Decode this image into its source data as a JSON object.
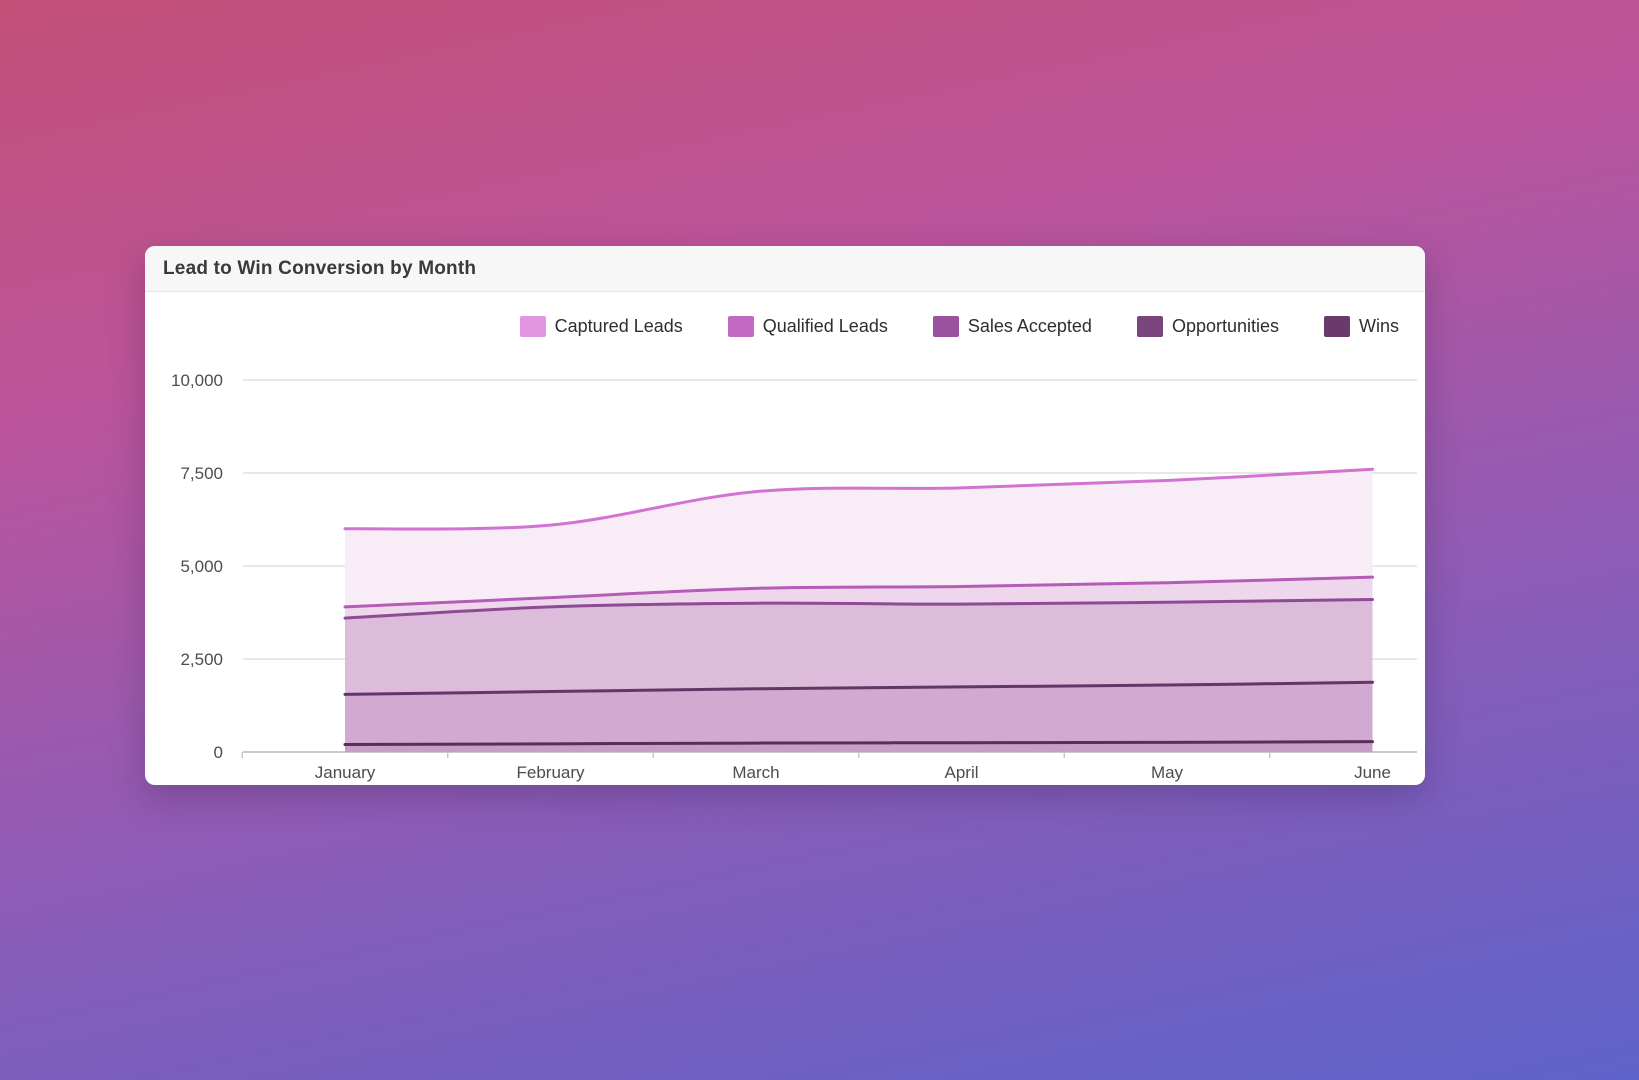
{
  "card": {
    "title": "Lead to Win Conversion by Month"
  },
  "page_colors": {
    "background_gradient_top": "#c25077",
    "background_gradient_mid1": "#bb549b",
    "background_gradient_mid2": "#8a5cb8",
    "background_gradient_bottom": "#5e63c9",
    "card_background": "#ffffff",
    "card_header_background": "#f7f7f7",
    "gridline": "#e8e8e8",
    "axis_line": "#c9c9c9",
    "axis_text": "#4d4d4d"
  },
  "chart_data": {
    "type": "area",
    "title": "Lead to Win Conversion by Month",
    "categories": [
      "January",
      "February",
      "March",
      "April",
      "May",
      "June"
    ],
    "series": [
      {
        "name": "Captured Leads",
        "values": [
          6000,
          6100,
          7000,
          7100,
          7300,
          7600
        ],
        "line_color": "#d272d2",
        "fill_color": "#f8ecf7",
        "swatch_color": "#e296e1"
      },
      {
        "name": "Qualified Leads",
        "values": [
          3900,
          4150,
          4400,
          4450,
          4550,
          4700
        ],
        "line_color": "#b55cb6",
        "fill_color": "#eed6ed",
        "swatch_color": "#c368c3"
      },
      {
        "name": "Sales Accepted",
        "values": [
          3600,
          3900,
          4000,
          3975,
          4025,
          4100
        ],
        "line_color": "#8d4b93",
        "fill_color": "#dcbbdb",
        "swatch_color": "#9a52a0"
      },
      {
        "name": "Opportunities",
        "values": [
          1550,
          1625,
          1700,
          1750,
          1800,
          1875
        ],
        "line_color": "#643667",
        "fill_color": "#d2a9d1",
        "swatch_color": "#7a457c"
      },
      {
        "name": "Wins",
        "values": [
          200,
          220,
          240,
          250,
          260,
          280
        ],
        "line_color": "#582f5a",
        "fill_color": "#c89dc8",
        "swatch_color": "#6a3a6d"
      }
    ],
    "ylim": [
      0,
      10000
    ],
    "y_tick_labels": [
      "10,000",
      "7,500",
      "5,000",
      "2,500",
      "0"
    ],
    "y_tick_values": [
      10000,
      7500,
      5000,
      2500,
      0
    ],
    "grid": true,
    "legend_position": "top-right"
  }
}
